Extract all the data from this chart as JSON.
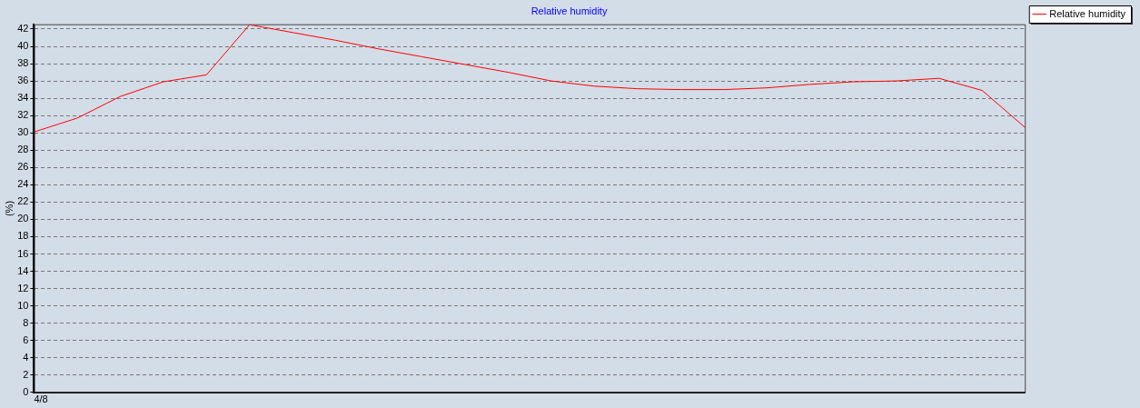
{
  "chart_data": {
    "type": "line",
    "title": "Relative humidity",
    "ylabel": "(%)",
    "categories": [
      "4/8",
      null,
      null,
      null,
      null,
      null,
      null,
      null,
      null,
      null,
      null,
      null,
      null,
      null,
      null,
      null,
      null,
      null,
      null,
      null,
      null,
      null,
      null,
      null
    ],
    "series": [
      {
        "name": "Relative humidity",
        "color": "#ff0000",
        "values": [
          30.1,
          31.7,
          34.2,
          35.9,
          36.7,
          42.5,
          41.6,
          40.7,
          39.7,
          38.8,
          37.9,
          37.0,
          36.0,
          35.4,
          35.1,
          35.0,
          35.0,
          35.2,
          35.6,
          35.9,
          36.0,
          36.3,
          34.9,
          30.6
        ]
      }
    ],
    "ylim": [
      0,
      42.5
    ],
    "yticks": [
      0,
      2,
      4,
      6,
      8,
      10,
      12,
      14,
      16,
      18,
      20,
      22,
      24,
      26,
      28,
      30,
      32,
      34,
      36,
      38,
      40,
      42
    ],
    "grid": "y",
    "legend": "right",
    "marker": "none",
    "line_style": "solid"
  }
}
